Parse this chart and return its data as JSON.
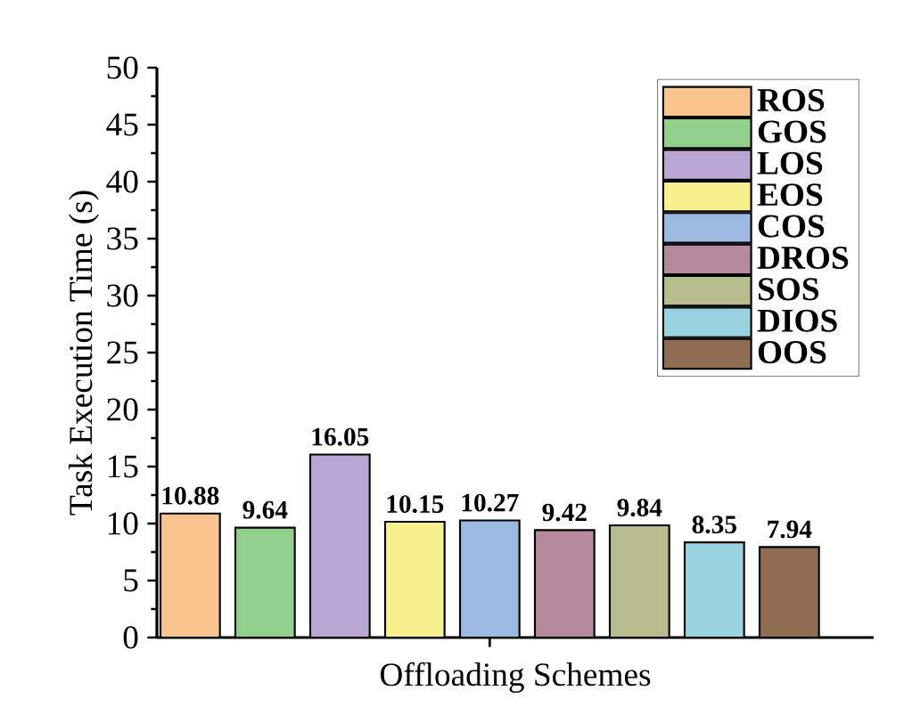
{
  "chart_data": {
    "type": "bar",
    "xlabel": "Offloading Schemes",
    "ylabel": "Task Execution Time (s)",
    "categories": [
      null
    ],
    "series": [
      {
        "name": "ROS",
        "color": "#fbc58f",
        "values": [
          10.88
        ]
      },
      {
        "name": "GOS",
        "color": "#93cf8c",
        "values": [
          9.64
        ]
      },
      {
        "name": "LOS",
        "color": "#b9a6d2",
        "values": [
          16.05
        ]
      },
      {
        "name": "EOS",
        "color": "#f7f08c",
        "values": [
          10.15
        ]
      },
      {
        "name": "COS",
        "color": "#9cb9e2",
        "values": [
          10.27
        ]
      },
      {
        "name": "DROS",
        "color": "#b68a9e",
        "values": [
          9.42
        ]
      },
      {
        "name": "SOS",
        "color": "#b8bb8c",
        "values": [
          9.84
        ]
      },
      {
        "name": "DIOS",
        "color": "#9ad3e0",
        "values": [
          8.35
        ]
      },
      {
        "name": "OOS",
        "color": "#8f6d52",
        "values": [
          7.94
        ]
      }
    ],
    "ylim": [
      0,
      50
    ],
    "yticks": [
      0,
      5,
      10,
      15,
      20,
      25,
      30,
      35,
      40,
      45,
      50
    ],
    "data_labels": true,
    "legend": "top right",
    "grid": false
  }
}
